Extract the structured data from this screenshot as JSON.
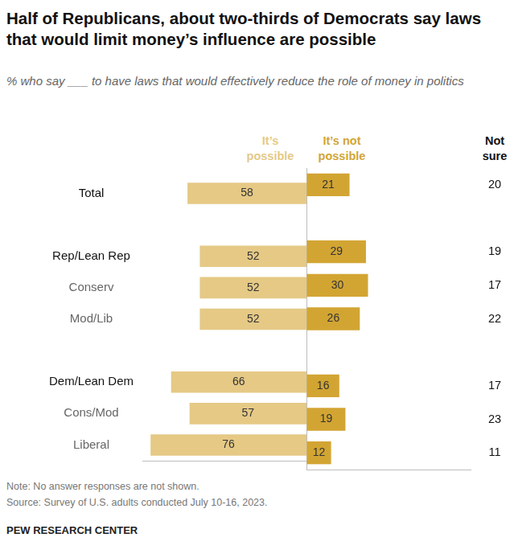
{
  "chart_data": {
    "type": "bar",
    "orientation": "horizontal",
    "title": "Half of Republicans, about two-thirds of Democrats say laws that would limit money’s influence are possible",
    "subtitle": "% who say ___ to have laws that would effectively reduce the role of money in politics",
    "categories": [
      "Total",
      null,
      "Rep/Lean Rep",
      "Conserv",
      "Mod/Lib",
      null,
      "Dem/Lean Dem",
      "Cons/Mod",
      "Liberal"
    ],
    "series": [
      {
        "name": "It’s possible",
        "color": "#e5c985",
        "values": [
          58,
          null,
          52,
          52,
          52,
          null,
          66,
          57,
          76
        ]
      },
      {
        "name": "It’s not possible",
        "color": "#d2a533",
        "values": [
          21,
          null,
          29,
          30,
          26,
          null,
          16,
          19,
          12
        ]
      },
      {
        "name": "Not sure",
        "type": "text",
        "values": [
          20,
          null,
          19,
          17,
          22,
          null,
          17,
          23,
          11
        ]
      }
    ],
    "xlim": [
      0,
      80
    ],
    "xticks": [
      0
    ],
    "grid": true,
    "data_labels": true,
    "tick_labels": "y",
    "note": "Note: No answer responses are not shown.",
    "source": "Source: Survey of U.S. adults conducted July 10-16, 2023.",
    "credit": "PEW RESEARCH CENTER"
  }
}
